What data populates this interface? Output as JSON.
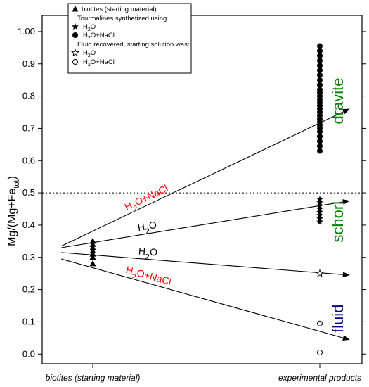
{
  "chart_data": {
    "type": "scatter",
    "ylabel": {
      "main": "Mg/(Mg+Fe",
      "sub": "tot",
      "close": ")"
    },
    "ylim": [
      -0.03,
      1.05
    ],
    "yticks": [
      "0.0",
      "0.1",
      "0.2",
      "0.3",
      "0.4",
      "0.5",
      "0.6",
      "0.7",
      "0.8",
      "0.9",
      "1.00"
    ],
    "categories": [
      "biotites (starting material)",
      "experimental products"
    ],
    "reference_line": {
      "y": 0.5,
      "style": "dotted"
    },
    "legend": {
      "placement": "top-left",
      "entries": [
        {
          "marker": "filled-triangle",
          "label": "biotites (starting material)"
        },
        {
          "marker": "none",
          "label": "Tourmalines synthetized using"
        },
        {
          "marker": "filled-star",
          "label": "H",
          "sub": "2",
          "tail": "O"
        },
        {
          "marker": "filled-circle",
          "label": "H",
          "sub": "2",
          "tail": "O+NaCl"
        },
        {
          "marker": "none",
          "label": "Fluid recovered, starting solution was:"
        },
        {
          "marker": "open-star",
          "label": "H",
          "sub": "2",
          "tail": "O"
        },
        {
          "marker": "open-circle",
          "label": "H",
          "sub": "2",
          "tail": "O+NaCl"
        }
      ]
    },
    "series": [
      {
        "marker": "filled-triangle",
        "category": 0,
        "values": [
          0.28,
          0.3,
          0.31,
          0.32,
          0.33,
          0.34,
          0.35
        ]
      },
      {
        "marker": "filled-circle",
        "category": 1,
        "values": [
          0.63,
          0.645,
          0.66,
          0.675,
          0.69,
          0.7,
          0.71,
          0.72,
          0.73,
          0.74,
          0.75,
          0.76,
          0.77,
          0.78,
          0.79,
          0.8,
          0.81,
          0.82,
          0.835,
          0.85,
          0.865,
          0.88,
          0.895,
          0.91,
          0.925,
          0.94,
          0.955
        ]
      },
      {
        "marker": "filled-star",
        "category": 1,
        "values": [
          0.41,
          0.42,
          0.43,
          0.44,
          0.45,
          0.46,
          0.47,
          0.48
        ]
      },
      {
        "marker": "open-star",
        "category": 1,
        "values": [
          0.25
        ]
      },
      {
        "marker": "open-circle",
        "category": 1,
        "values": [
          0.095,
          0.005
        ]
      }
    ],
    "arrows": [
      {
        "from": [
          0.06,
          0.335
        ],
        "to": [
          0.96,
          0.76
        ],
        "label": {
          "main": "H",
          "sub": "2",
          "tail": "O+NaCl"
        },
        "label_color": "#ff0000"
      },
      {
        "from": [
          0.06,
          0.33
        ],
        "to": [
          0.96,
          0.475
        ],
        "label": {
          "main": "H",
          "sub": "2",
          "tail": "O"
        },
        "label_color": "#000000"
      },
      {
        "from": [
          0.06,
          0.315
        ],
        "to": [
          0.96,
          0.245
        ],
        "label": {
          "main": "H",
          "sub": "2",
          "tail": "O"
        },
        "label_color": "#000000"
      },
      {
        "from": [
          0.06,
          0.295
        ],
        "to": [
          0.96,
          0.045
        ],
        "label": {
          "main": "H",
          "sub": "2",
          "tail": "O+NaCl"
        },
        "label_color": "#ff0000"
      }
    ],
    "annotations": [
      {
        "text": "dravite",
        "color": "#008000"
      },
      {
        "text": "schorl",
        "color": "#008000"
      },
      {
        "text": "fluid",
        "color": "#00008b"
      }
    ]
  }
}
